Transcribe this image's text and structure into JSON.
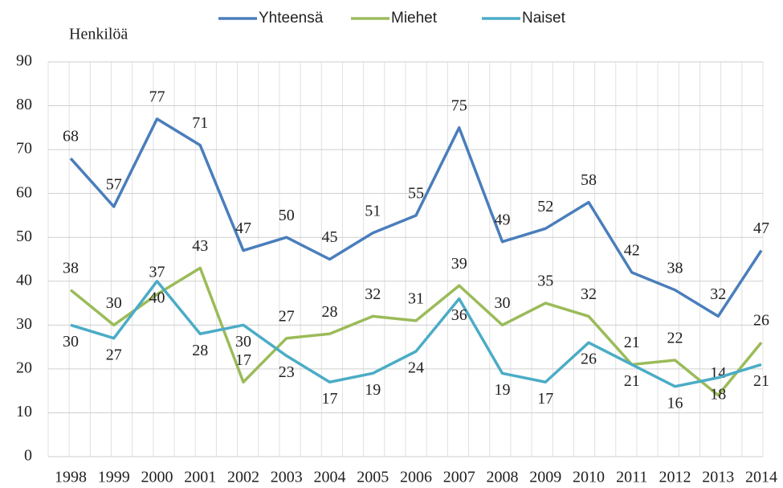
{
  "chart_data": {
    "type": "line",
    "ylabel": "Henkilöä",
    "categories": [
      "1998",
      "1999",
      "2000",
      "2001",
      "2002",
      "2003",
      "2004",
      "2005",
      "2006",
      "2007",
      "2008",
      "2009",
      "2010",
      "2011",
      "2012",
      "2013",
      "2014"
    ],
    "series": [
      {
        "name": "Yhteensä",
        "color": "#4a7ebb",
        "values": [
          68,
          57,
          77,
          71,
          47,
          50,
          45,
          51,
          55,
          75,
          49,
          52,
          58,
          42,
          38,
          32,
          47
        ]
      },
      {
        "name": "Miehet",
        "color": "#9bbb59",
        "values": [
          38,
          30,
          37,
          43,
          17,
          27,
          28,
          32,
          31,
          39,
          30,
          35,
          32,
          21,
          22,
          14,
          26
        ]
      },
      {
        "name": "Naiset",
        "color": "#4bacc6",
        "values": [
          30,
          27,
          40,
          28,
          30,
          23,
          17,
          19,
          24,
          36,
          19,
          17,
          26,
          21,
          16,
          18,
          21
        ]
      }
    ],
    "ylim": [
      0,
      90
    ],
    "yticks": [
      0,
      10,
      20,
      30,
      40,
      50,
      60,
      70,
      80,
      90
    ],
    "grid": true,
    "legend": "top"
  }
}
